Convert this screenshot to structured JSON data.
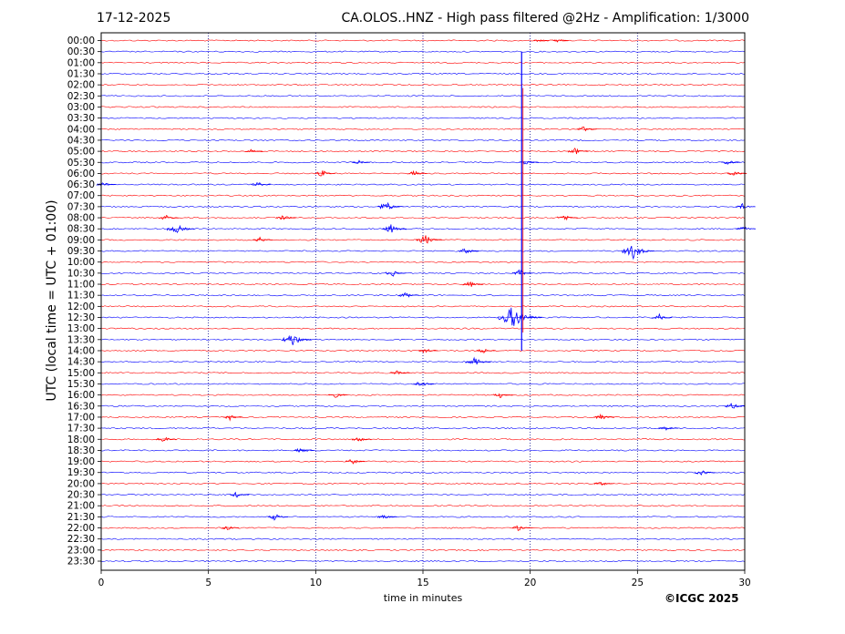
{
  "header": {
    "date": "17-12-2025",
    "title": "CA.OLOS..HNZ - High pass filtered @2Hz - Amplification: 1/3000"
  },
  "footer": {
    "copyright": "©ICGC 2025"
  },
  "chart_data": {
    "type": "line",
    "ylabel": "UTC (local time = UTC + 01:00)",
    "xlabel": "time in minutes",
    "xlim": [
      0,
      30
    ],
    "x_ticks": [
      "0",
      "5",
      "10",
      "15",
      "20",
      "25",
      "30"
    ],
    "grid": "vertical dotted lines at 5, 10, 15, 20, 25",
    "rows": [
      "00:00",
      "00:30",
      "01:00",
      "01:30",
      "02:00",
      "02:30",
      "03:00",
      "03:30",
      "04:00",
      "04:30",
      "05:00",
      "05:30",
      "06:00",
      "06:30",
      "07:00",
      "07:30",
      "08:00",
      "08:30",
      "09:00",
      "09:30",
      "10:00",
      "10:30",
      "11:00",
      "11:30",
      "12:00",
      "12:30",
      "13:00",
      "13:30",
      "14:00",
      "14:30",
      "15:00",
      "15:30",
      "16:00",
      "16:30",
      "17:00",
      "17:30",
      "18:00",
      "18:30",
      "19:00",
      "19:30",
      "20:00",
      "20:30",
      "21:00",
      "21:30",
      "22:00",
      "22:30",
      "23:00",
      "23:30"
    ],
    "row_colors": [
      "#ff0000",
      "#0000ff"
    ],
    "events": [
      {
        "row": "00:00",
        "minute": 20.4,
        "amplitude": 0.3
      },
      {
        "row": "00:00",
        "minute": 21.3,
        "amplitude": 0.3
      },
      {
        "row": "04:00",
        "minute": 22.5,
        "amplitude": 0.5
      },
      {
        "row": "05:00",
        "minute": 22.1,
        "amplitude": 0.6
      },
      {
        "row": "05:00",
        "minute": 7.0,
        "amplitude": 0.4
      },
      {
        "row": "05:30",
        "minute": 12.0,
        "amplitude": 0.4
      },
      {
        "row": "05:30",
        "minute": 19.8,
        "amplitude": 0.5
      },
      {
        "row": "05:30",
        "minute": 29.2,
        "amplitude": 0.5
      },
      {
        "row": "06:00",
        "minute": 10.3,
        "amplitude": 0.6
      },
      {
        "row": "06:00",
        "minute": 14.6,
        "amplitude": 0.5
      },
      {
        "row": "06:00",
        "minute": 29.5,
        "amplitude": 0.5
      },
      {
        "row": "06:30",
        "minute": 7.3,
        "amplitude": 0.5
      },
      {
        "row": "06:30",
        "minute": 0.1,
        "amplitude": 0.5
      },
      {
        "row": "07:30",
        "minute": 13.3,
        "amplitude": 0.9
      },
      {
        "row": "07:30",
        "minute": 29.9,
        "amplitude": 0.5
      },
      {
        "row": "08:00",
        "minute": 3.0,
        "amplitude": 0.5
      },
      {
        "row": "08:00",
        "minute": 8.5,
        "amplitude": 0.6
      },
      {
        "row": "08:00",
        "minute": 21.6,
        "amplitude": 0.6
      },
      {
        "row": "08:30",
        "minute": 3.5,
        "amplitude": 1.0
      },
      {
        "row": "08:30",
        "minute": 13.5,
        "amplitude": 0.8
      },
      {
        "row": "08:30",
        "minute": 29.9,
        "amplitude": 0.6
      },
      {
        "row": "09:00",
        "minute": 15.1,
        "amplitude": 0.9
      },
      {
        "row": "09:00",
        "minute": 7.4,
        "amplitude": 0.5
      },
      {
        "row": "09:30",
        "minute": 24.8,
        "amplitude": 1.3
      },
      {
        "row": "09:30",
        "minute": 17.0,
        "amplitude": 0.6
      },
      {
        "row": "10:30",
        "minute": 13.6,
        "amplitude": 0.6
      },
      {
        "row": "10:30",
        "minute": 19.5,
        "amplitude": 0.6
      },
      {
        "row": "11:00",
        "minute": 17.2,
        "amplitude": 0.6
      },
      {
        "row": "11:30",
        "minute": 14.2,
        "amplitude": 0.6
      },
      {
        "row": "12:30",
        "minute": 19.2,
        "amplitude": 2.0
      },
      {
        "row": "12:30",
        "minute": 26.0,
        "amplitude": 0.6
      },
      {
        "row": "13:30",
        "minute": 8.9,
        "amplitude": 1.2
      },
      {
        "row": "14:00",
        "minute": 15.1,
        "amplitude": 0.5
      },
      {
        "row": "14:00",
        "minute": 17.8,
        "amplitude": 0.5
      },
      {
        "row": "14:30",
        "minute": 17.4,
        "amplitude": 0.9
      },
      {
        "row": "15:00",
        "minute": 13.8,
        "amplitude": 0.5
      },
      {
        "row": "15:30",
        "minute": 14.9,
        "amplitude": 0.6
      },
      {
        "row": "16:00",
        "minute": 10.9,
        "amplitude": 0.5
      },
      {
        "row": "16:00",
        "minute": 18.6,
        "amplitude": 0.5
      },
      {
        "row": "16:30",
        "minute": 29.4,
        "amplitude": 0.6
      },
      {
        "row": "17:00",
        "minute": 6.0,
        "amplitude": 0.5
      },
      {
        "row": "17:00",
        "minute": 23.3,
        "amplitude": 0.6
      },
      {
        "row": "17:30",
        "minute": 26.3,
        "amplitude": 0.5
      },
      {
        "row": "18:00",
        "minute": 2.9,
        "amplitude": 0.6
      },
      {
        "row": "18:00",
        "minute": 12.0,
        "amplitude": 0.5
      },
      {
        "row": "18:30",
        "minute": 9.3,
        "amplitude": 0.6
      },
      {
        "row": "19:00",
        "minute": 11.7,
        "amplitude": 0.5
      },
      {
        "row": "19:30",
        "minute": 28.0,
        "amplitude": 0.6
      },
      {
        "row": "20:00",
        "minute": 23.3,
        "amplitude": 0.5
      },
      {
        "row": "20:30",
        "minute": 6.3,
        "amplitude": 0.5
      },
      {
        "row": "21:30",
        "minute": 8.1,
        "amplitude": 0.6
      },
      {
        "row": "21:30",
        "minute": 13.2,
        "amplitude": 0.5
      },
      {
        "row": "22:00",
        "minute": 19.5,
        "amplitude": 0.6
      },
      {
        "row": "22:00",
        "minute": 5.9,
        "amplitude": 0.4
      }
    ],
    "large_event": {
      "minute": 19.6,
      "from_row": "00:30",
      "to_row": "14:00"
    }
  }
}
